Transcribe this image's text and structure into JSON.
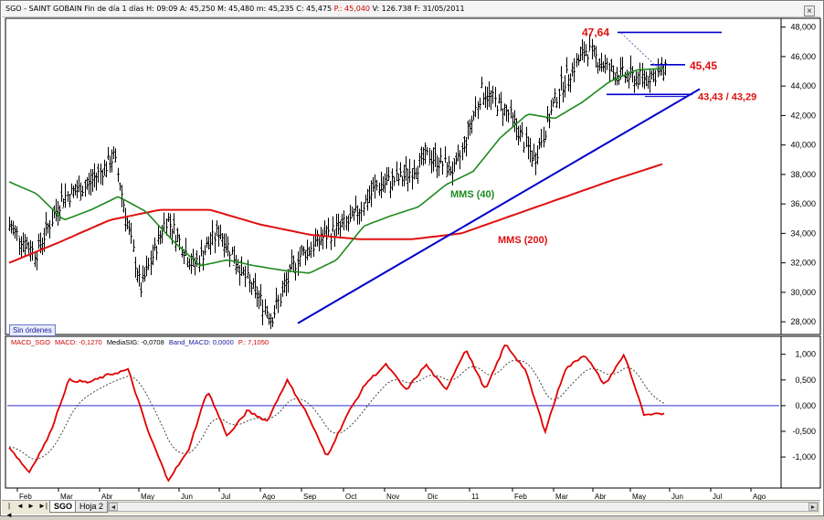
{
  "header": {
    "symbol": "SGO - SAINT GOBAIN",
    "period": "Fin de día 1 días",
    "high": "H: 09:09",
    "values": "A: 45,250  M: 45,480  m: 45,235  C: 45,475",
    "p_value": "P.: 45,040",
    "volume_date": "V: 126.738  F: 31/05/2011"
  },
  "macd_header": {
    "macd_name": "MACD_SGO",
    "macd_value": "MACD: -0,1270",
    "signal": "MediaSIG: -0,0708",
    "band": "Band_MACD: 0,0000",
    "p": "P.: 7,1050"
  },
  "close_glyph": "×",
  "sin_ordenes": "Sin órdenes",
  "tabs": [
    {
      "label": "SGO",
      "active": true
    },
    {
      "label": "Hoja 2",
      "active": false
    }
  ],
  "nav_glyphs": [
    "|◄",
    "◄",
    "►",
    "►|"
  ],
  "scroll_glyphs": {
    "left": "◄",
    "right": "►"
  },
  "colors": {
    "price": "#000000",
    "mms40": "#1e8a1e",
    "mms200": "#e01010",
    "trendline": "#0000cc",
    "macd": "#e00000",
    "signal": "#333333",
    "zero_line": "#3030d0",
    "label_red": "#e01010",
    "label_green": "#1e8a1e"
  },
  "chart_data": [
    {
      "type": "line",
      "series_kind": "ohlc-bars with moving averages",
      "months": [
        "Feb",
        "Mar",
        "Abr",
        "May",
        "Jun",
        "Jul",
        "Ago",
        "Sep",
        "Oct",
        "Nov",
        "Dic",
        "11",
        "Feb",
        "Mar",
        "Abr",
        "May",
        "Jun",
        "Jul",
        "Ago"
      ],
      "yticks": [
        "48,000",
        "46,000",
        "44,000",
        "42,000",
        "40,000",
        "38,000",
        "36,000",
        "34,000",
        "32,000",
        "30,000",
        "28,000"
      ],
      "ylim": [
        27.2,
        48.6
      ],
      "price_keypoints": [
        [
          0,
          34.5
        ],
        [
          1,
          32.6
        ],
        [
          2,
          36.4
        ],
        [
          3,
          37.3
        ],
        [
          4,
          39.2
        ],
        [
          5,
          30.2
        ],
        [
          6,
          35.1
        ],
        [
          7,
          31.8
        ],
        [
          8,
          34.2
        ],
        [
          9,
          31.0
        ],
        [
          10,
          28.3
        ],
        [
          11,
          32.4
        ],
        [
          12,
          33.8
        ],
        [
          13,
          34.8
        ],
        [
          14,
          37.2
        ],
        [
          15,
          37.8
        ],
        [
          16,
          39.3
        ],
        [
          17,
          38.2
        ],
        [
          18,
          43.7
        ],
        [
          19,
          42.2
        ],
        [
          20,
          39.0
        ],
        [
          21,
          44.0
        ],
        [
          22,
          46.5
        ],
        [
          23,
          44.9
        ],
        [
          24,
          44.5
        ],
        [
          25,
          45.0
        ]
      ],
      "mms40_keypoints": [
        [
          0,
          37.5
        ],
        [
          1,
          36.7
        ],
        [
          2,
          34.9
        ],
        [
          3,
          35.6
        ],
        [
          4,
          36.5
        ],
        [
          5,
          35.5
        ],
        [
          6,
          33.5
        ],
        [
          7,
          31.8
        ],
        [
          8,
          32.2
        ],
        [
          9,
          31.8
        ],
        [
          10,
          31.5
        ],
        [
          11,
          31.3
        ],
        [
          12,
          32.2
        ],
        [
          13,
          34.5
        ],
        [
          14,
          35.2
        ],
        [
          15,
          35.8
        ],
        [
          16,
          37.3
        ],
        [
          17,
          38.2
        ],
        [
          18,
          40.5
        ],
        [
          19,
          42.1
        ],
        [
          20,
          41.8
        ],
        [
          21,
          42.9
        ],
        [
          22,
          44.3
        ],
        [
          23,
          45.1
        ],
        [
          24,
          45.2
        ]
      ],
      "mms200_keypoints": [
        [
          0,
          32.0
        ],
        [
          1,
          33.4
        ],
        [
          2,
          34.9
        ],
        [
          3,
          35.6
        ],
        [
          4,
          35.6
        ],
        [
          5,
          34.6
        ],
        [
          6,
          33.9
        ],
        [
          7,
          33.6
        ],
        [
          8,
          33.6
        ],
        [
          9,
          34.0
        ],
        [
          10,
          35.2
        ],
        [
          11,
          36.4
        ],
        [
          12,
          37.6
        ],
        [
          13,
          38.7
        ]
      ],
      "trendline": {
        "from": [
          0,
          27.9
        ],
        "to": [
          1,
          43.8
        ]
      },
      "resistance_lines": [
        {
          "label": "47,64",
          "value": 47.64
        },
        {
          "label": "45,45",
          "value": 45.45
        },
        {
          "label": "43,43 / 43,29",
          "value": 43.43
        }
      ],
      "annotations": [
        {
          "text": "47,64"
        },
        {
          "text": "45,45"
        },
        {
          "text": "43,43 / 43,29"
        },
        {
          "text": "MMS (40)"
        },
        {
          "text": "MMS (200)"
        }
      ]
    },
    {
      "type": "line",
      "series_kind": "macd oscillator",
      "yticks": [
        "1,000",
        "0,500",
        "0,000",
        "-0,500",
        "-1,000"
      ],
      "ylim": [
        -1.55,
        1.35
      ],
      "macd_keypoints": [
        [
          0,
          -0.8
        ],
        [
          1,
          -1.3
        ],
        [
          2,
          -0.6
        ],
        [
          3,
          0.5
        ],
        [
          4,
          0.45
        ],
        [
          5,
          0.6
        ],
        [
          6,
          0.7
        ],
        [
          7,
          -0.5
        ],
        [
          8,
          -1.45
        ],
        [
          9,
          -0.9
        ],
        [
          10,
          0.3
        ],
        [
          11,
          -0.6
        ],
        [
          12,
          -0.1
        ],
        [
          13,
          -0.3
        ],
        [
          14,
          0.5
        ],
        [
          15,
          -0.15
        ],
        [
          16,
          -1.0
        ],
        [
          17,
          -0.2
        ],
        [
          18,
          0.45
        ],
        [
          19,
          0.8
        ],
        [
          20,
          0.3
        ],
        [
          21,
          0.8
        ],
        [
          22,
          0.3
        ],
        [
          23,
          1.1
        ],
        [
          24,
          0.3
        ],
        [
          25,
          1.2
        ],
        [
          26,
          0.7
        ],
        [
          27,
          -0.5
        ],
        [
          28,
          0.7
        ],
        [
          29,
          1.0
        ],
        [
          30,
          0.4
        ],
        [
          31,
          1.0
        ],
        [
          32,
          -0.2
        ],
        [
          33,
          -0.15
        ]
      ]
    }
  ]
}
